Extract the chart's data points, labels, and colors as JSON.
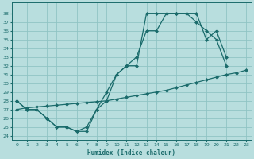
{
  "xlabel": "Humidex (Indice chaleur)",
  "bg_color": "#b8dede",
  "grid_color": "#90c4c4",
  "line_color": "#1a6b6b",
  "xlim": [
    -0.5,
    23.5
  ],
  "ylim": [
    23.5,
    39.2
  ],
  "xticks": [
    0,
    1,
    2,
    3,
    4,
    5,
    6,
    7,
    8,
    9,
    10,
    11,
    12,
    13,
    14,
    15,
    16,
    17,
    18,
    19,
    20,
    21,
    22,
    23
  ],
  "yticks": [
    24,
    25,
    26,
    27,
    28,
    29,
    30,
    31,
    32,
    33,
    34,
    35,
    36,
    37,
    38
  ],
  "line1_x": [
    0,
    1,
    2,
    3,
    4,
    5,
    6,
    7,
    8,
    9,
    10,
    11,
    12,
    13,
    14,
    15,
    16,
    17,
    18,
    19,
    20,
    21
  ],
  "line1_y": [
    28,
    27,
    27,
    26,
    25,
    25,
    24.5,
    24.5,
    27,
    28,
    31,
    32,
    32,
    38,
    38,
    38,
    38,
    38,
    37,
    36,
    35,
    32
  ],
  "line2_x": [
    0,
    1,
    2,
    3,
    4,
    5,
    6,
    7,
    8,
    9,
    10,
    11,
    12,
    13,
    14,
    15,
    16,
    17,
    18,
    19,
    20,
    21
  ],
  "line2_y": [
    28,
    27,
    27,
    26,
    25,
    25,
    24.5,
    25,
    27,
    29,
    31,
    32,
    33,
    36,
    36,
    38,
    38,
    38,
    38,
    35,
    36,
    33
  ],
  "line3_x": [
    0,
    1,
    2,
    3,
    4,
    5,
    6,
    7,
    8,
    9,
    10,
    11,
    12,
    13,
    14,
    15,
    16,
    17,
    18,
    19,
    20,
    21,
    22,
    23
  ],
  "line3_y": [
    27,
    27.2,
    27.3,
    27.4,
    27.5,
    27.6,
    27.7,
    27.8,
    27.9,
    28.0,
    28.2,
    28.4,
    28.6,
    28.8,
    29.0,
    29.2,
    29.5,
    29.8,
    30.1,
    30.4,
    30.7,
    31.0,
    31.2,
    31.5
  ]
}
